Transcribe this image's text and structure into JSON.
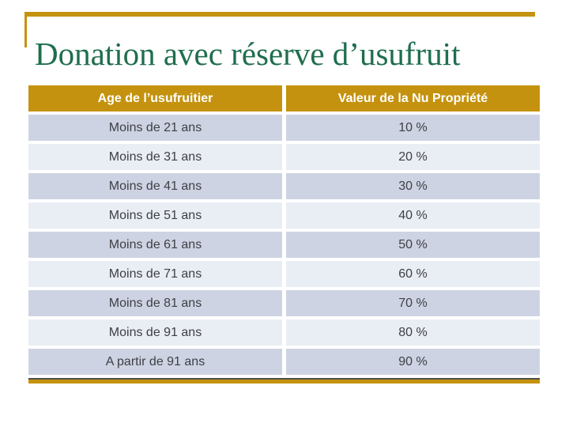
{
  "slide": {
    "title": "Donation avec réserve d’usufruit"
  },
  "table": {
    "headers": [
      "Age de l’usufruitier",
      "Valeur de la Nu Propriété"
    ],
    "rows": [
      {
        "age": "Moins de 21 ans",
        "value": "10 %"
      },
      {
        "age": "Moins de 31 ans",
        "value": "20 %"
      },
      {
        "age": "Moins de 41 ans",
        "value": "30 %"
      },
      {
        "age": "Moins de 51 ans",
        "value": "40 %"
      },
      {
        "age": "Moins de 61 ans",
        "value": "50 %"
      },
      {
        "age": "Moins de 71 ans",
        "value": "60 %"
      },
      {
        "age": "Moins de 81 ans",
        "value": "70 %"
      },
      {
        "age": "Moins de 91 ans",
        "value": "80 %"
      },
      {
        "age": "A partir de 91 ans",
        "value": "90 %"
      }
    ]
  },
  "colors": {
    "accent_gold": "#C4920E",
    "title_green": "#1F6E4E",
    "row_dark": "#CDD3E2",
    "row_light": "#E9EDF4",
    "body_text": "#3F3F46",
    "header_text": "#FFFFFF",
    "bottom_line_dark": "#50504A"
  }
}
